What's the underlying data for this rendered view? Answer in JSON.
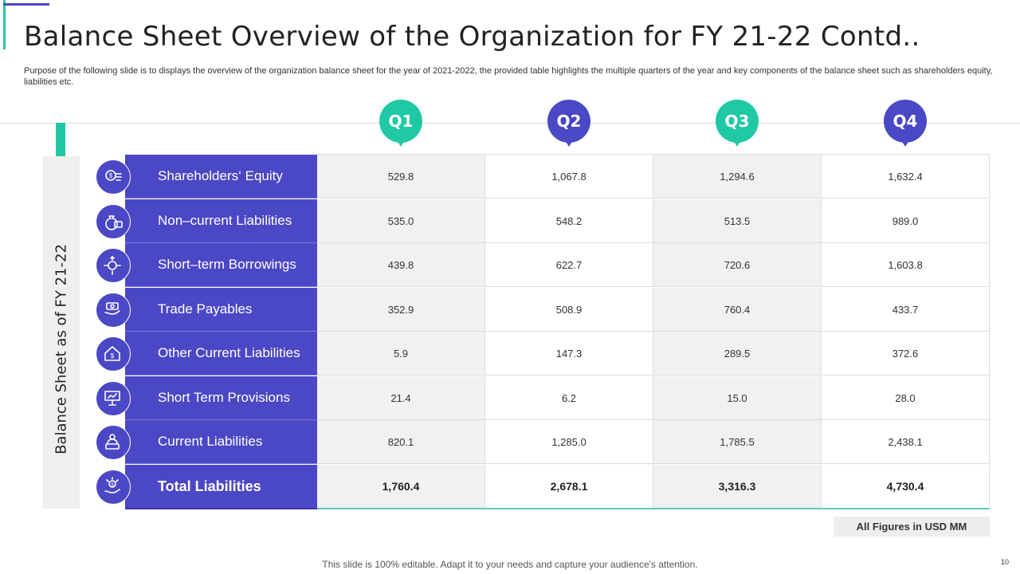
{
  "slide": {
    "title": "Balance Sheet Overview of the Organization for FY 21-22 Contd..",
    "subtitle": "Purpose of the following slide is to displays the overview of the organization balance sheet for the year of 2021-2022, the provided table highlights the multiple quarters of the year and key components of the balance sheet such as shareholders equity, liabilities etc.",
    "side_label": "Balance Sheet as of FY 21-22",
    "note": "All Figures in USD MM",
    "footer": "This slide is 100% editable. Adapt it to your needs and capture your audience's attention.",
    "page_number": "10"
  },
  "colors": {
    "accent_purple": "#4b48c6",
    "accent_teal": "#1fc9a5"
  },
  "quarters": [
    {
      "label": "Q1",
      "color": "#1fc9a5"
    },
    {
      "label": "Q2",
      "color": "#4b48c6"
    },
    {
      "label": "Q3",
      "color": "#1fc9a5"
    },
    {
      "label": "Q4",
      "color": "#4b48c6"
    }
  ],
  "rows": [
    {
      "label": "Shareholders‘ Equity",
      "icon": "coin-gear-icon",
      "values": [
        "529.8",
        "1,067.8",
        "1,294.6",
        "1,632.4"
      ]
    },
    {
      "label": "Non–current Liabilities",
      "icon": "money-bag-icon",
      "values": [
        "535.0",
        "548.2",
        "513.5",
        "989.0"
      ]
    },
    {
      "label": "Short–term Borrowings",
      "icon": "dollar-arrows-icon",
      "values": [
        "439.8",
        "622.7",
        "720.6",
        "1,603.8"
      ]
    },
    {
      "label": "Trade Payables",
      "icon": "hand-cash-icon",
      "values": [
        "352.9",
        "508.9",
        "760.4",
        "433.7"
      ]
    },
    {
      "label": "Other Current Liabilities",
      "icon": "house-dollar-icon",
      "values": [
        "5.9",
        "147.3",
        "289.5",
        "372.6"
      ]
    },
    {
      "label": "Short Term Provisions",
      "icon": "presentation-board-icon",
      "values": [
        "21.4",
        "6.2",
        "15.0",
        "28.0"
      ]
    },
    {
      "label": "Current Liabilities",
      "icon": "user-cash-icon",
      "values": [
        "820.1",
        "1,285.0",
        "1,785.5",
        "2,438.1"
      ]
    },
    {
      "label": "Total Liabilities",
      "icon": "hand-dollar-coins-icon",
      "values": [
        "1,760.4",
        "2,678.1",
        "3,316.3",
        "4,730.4"
      ],
      "total": true
    }
  ]
}
